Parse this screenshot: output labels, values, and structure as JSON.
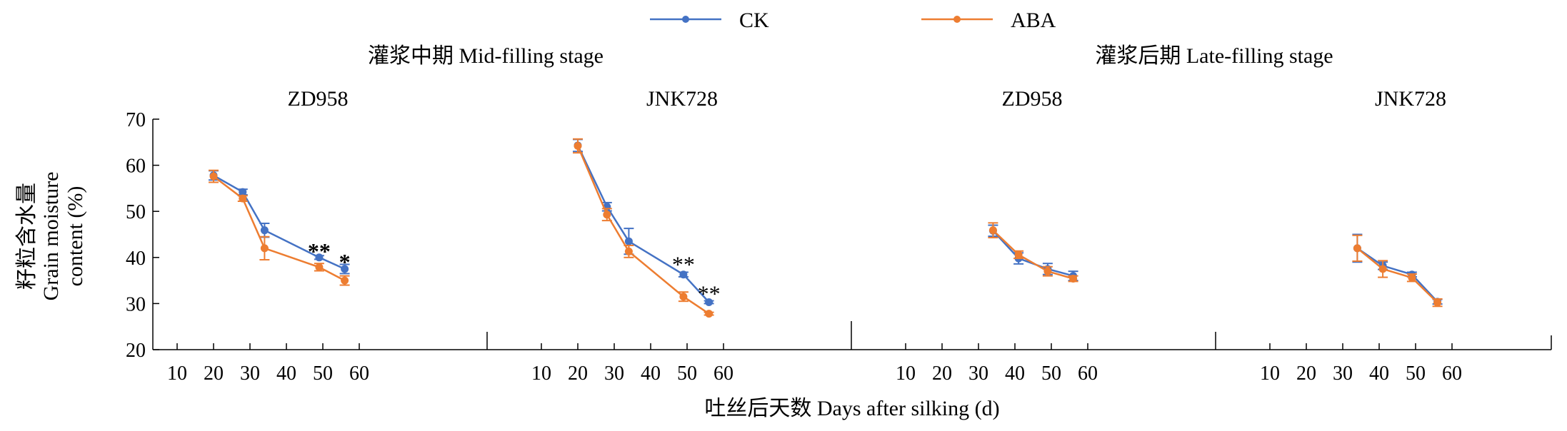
{
  "legend": {
    "items": [
      {
        "name": "CK",
        "color": "#4472C4"
      },
      {
        "name": "ABA",
        "color": "#ED7D31"
      }
    ]
  },
  "stage_titles": {
    "mid": "灌浆中期 Mid-filling stage",
    "late": "灌浆后期 Late-filling stage"
  },
  "axes": {
    "ylabel_lines": [
      "籽粒含水量",
      "Grain moisture",
      "content (%)"
    ],
    "xlabel": "吐丝后天数 Days after silking (d)",
    "y_ticks": [
      "20",
      "30",
      "40",
      "50",
      "60",
      "70"
    ],
    "x_ticks": [
      "10",
      "20",
      "30",
      "40",
      "50",
      "60"
    ]
  },
  "chart_data": {
    "type": "line",
    "ylim": [
      20,
      70
    ],
    "xlim": [
      10,
      65
    ],
    "xlabel": "吐丝后天数 Days after silking (d)",
    "ylabel": "籽粒含水量 Grain moisture content (%)",
    "legend_position": "top-center",
    "panels": [
      {
        "stage": "灌浆中期 Mid-filling stage",
        "title": "ZD958",
        "series": [
          {
            "name": "CK",
            "color": "#4472C4",
            "x": [
              20,
              28,
              34,
              49,
              56
            ],
            "y": [
              57.8,
              54.2,
              45.9,
              40.0,
              37.5
            ],
            "err": [
              1.0,
              0.6,
              1.5,
              0.4,
              1.0
            ]
          },
          {
            "name": "ABA",
            "color": "#ED7D31",
            "x": [
              20,
              28,
              34,
              49,
              56
            ],
            "y": [
              57.6,
              52.8,
              42.0,
              37.9,
              35.0
            ],
            "err": [
              1.3,
              0.6,
              2.5,
              0.8,
              1.0
            ]
          }
        ],
        "annotations": [
          {
            "text": "**",
            "x": 49,
            "y": 41.8
          },
          {
            "text": "*",
            "x": 56,
            "y": 39.5
          }
        ]
      },
      {
        "stage": "灌浆中期 Mid-filling stage",
        "title": "JNK728",
        "series": [
          {
            "name": "CK",
            "color": "#4472C4",
            "x": [
              20,
              28,
              34,
              49,
              56
            ],
            "y": [
              64.3,
              51.0,
              43.5,
              36.3,
              30.3
            ],
            "err": [
              1.3,
              0.9,
              2.8,
              0.5,
              0.3
            ]
          },
          {
            "name": "ABA",
            "color": "#ED7D31",
            "x": [
              20,
              28,
              34,
              49,
              56
            ],
            "y": [
              64.2,
              49.3,
              41.3,
              31.5,
              27.8
            ],
            "err": [
              1.5,
              1.3,
              1.3,
              1.0,
              0.3
            ]
          }
        ],
        "annotations": [
          {
            "text": "**",
            "x": 49,
            "y": 39.0
          },
          {
            "text": "**",
            "x": 56,
            "y": 32.6
          }
        ]
      },
      {
        "stage": "灌浆后期 Late-filling stage",
        "title": "ZD958",
        "series": [
          {
            "name": "CK",
            "color": "#4472C4",
            "x": [
              34,
              41,
              49,
              56
            ],
            "y": [
              45.8,
              39.8,
              37.5,
              36.0
            ],
            "err": [
              1.2,
              1.2,
              1.2,
              1.0
            ]
          },
          {
            "name": "ABA",
            "color": "#ED7D31",
            "x": [
              34,
              41,
              49,
              56
            ],
            "y": [
              45.9,
              40.6,
              37.0,
              35.4
            ],
            "err": [
              1.6,
              0.8,
              1.0,
              0.6
            ]
          }
        ],
        "annotations": []
      },
      {
        "stage": "灌浆后期 Late-filling stage",
        "title": "JNK728",
        "series": [
          {
            "name": "CK",
            "color": "#4472C4",
            "x": [
              34,
              41,
              49,
              56
            ],
            "y": [
              42.0,
              38.2,
              36.3,
              30.4
            ],
            "err": [
              3.0,
              0.8,
              0.5,
              0.5
            ]
          },
          {
            "name": "ABA",
            "color": "#ED7D31",
            "x": [
              34,
              41,
              49,
              56
            ],
            "y": [
              42.0,
              37.5,
              35.6,
              30.2
            ],
            "err": [
              2.8,
              1.8,
              0.8,
              0.8
            ]
          }
        ],
        "annotations": []
      }
    ]
  }
}
